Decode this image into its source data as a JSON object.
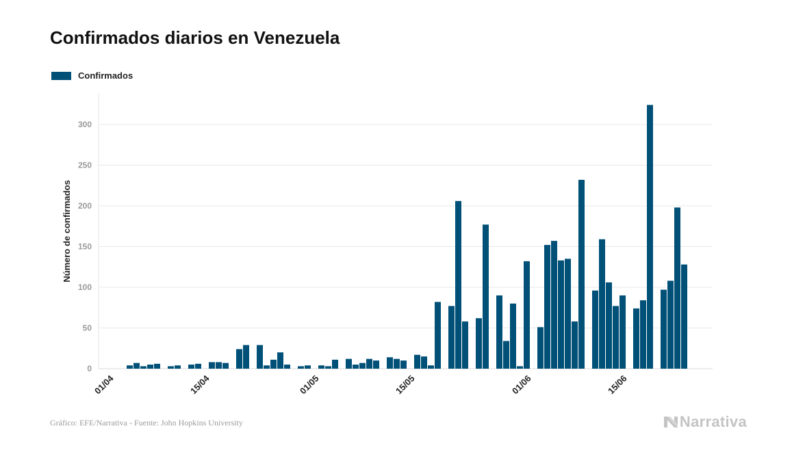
{
  "chart_data": {
    "type": "bar",
    "title": "Confirmados diarios en Venezuela",
    "ylabel": "Número de confirmados",
    "xlabel": "",
    "ylim": [
      0,
      340
    ],
    "yticks": [
      0,
      50,
      100,
      150,
      200,
      250,
      300
    ],
    "grid": true,
    "legend_position": "top-left",
    "x_tick_labels": [
      {
        "index": 0,
        "label": "01/04"
      },
      {
        "index": 14,
        "label": "15/04"
      },
      {
        "index": 30,
        "label": "01/05"
      },
      {
        "index": 44,
        "label": "15/05"
      },
      {
        "index": 61,
        "label": "01/06"
      },
      {
        "index": 75,
        "label": "15/06"
      }
    ],
    "series": [
      {
        "name": "Confirmados",
        "color": "#005077",
        "values": [
          0,
          0,
          0,
          4,
          7,
          3,
          5,
          6,
          0,
          3,
          4,
          0,
          5,
          6,
          0,
          8,
          8,
          7,
          0,
          24,
          29,
          0,
          29,
          4,
          11,
          20,
          5,
          0,
          3,
          4,
          0,
          4,
          3,
          11,
          0,
          12,
          5,
          7,
          12,
          10,
          0,
          14,
          12,
          10,
          0,
          17,
          15,
          4,
          82,
          0,
          77,
          206,
          58,
          0,
          62,
          177,
          0,
          90,
          34,
          80,
          3,
          132,
          0,
          51,
          152,
          157,
          133,
          135,
          58,
          232,
          0,
          96,
          159,
          106,
          77,
          90,
          0,
          74,
          84,
          324,
          0,
          97,
          108,
          198,
          128
        ]
      }
    ]
  },
  "legend": {
    "label": "Confirmados",
    "color": "#005077"
  },
  "footer": {
    "source": "Gráfico: EFE/Narrativa - Fuente: John Hopkins University",
    "brand": "Narrativa"
  }
}
